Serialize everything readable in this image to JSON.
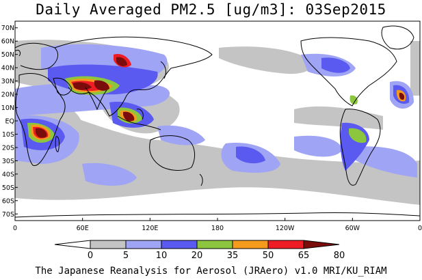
{
  "title": "Daily Averaged PM2.5 [ug/m3]: 03Sep2015",
  "credit": "The Japanese Reanalysis for Aerosol (JRAero) v1.0 MRI/KU_RIAM",
  "map": {
    "projection": "equirectangular",
    "lon_range": [
      0,
      360
    ],
    "lat_range": [
      -75,
      75
    ],
    "lat_ticks": [
      "70N",
      "60N",
      "50N",
      "40N",
      "30N",
      "20N",
      "10N",
      "EQ",
      "10S",
      "20S",
      "30S",
      "40S",
      "50S",
      "60S",
      "70S"
    ],
    "lat_tick_values": [
      70,
      60,
      50,
      40,
      30,
      20,
      10,
      0,
      -10,
      -20,
      -30,
      -40,
      -50,
      -60,
      -70
    ],
    "lon_ticks": [
      "0",
      "60E",
      "120E",
      "180",
      "120W",
      "60W",
      "0"
    ],
    "lon_tick_values": [
      0,
      60,
      120,
      180,
      240,
      300,
      360
    ]
  },
  "colorbar": {
    "levels": [
      "0",
      "5",
      "10",
      "20",
      "35",
      "50",
      "65",
      "80"
    ],
    "colors": [
      "#ffffff",
      "#c4c4c4",
      "#a0a4f4",
      "#5a5af0",
      "#8cc63f",
      "#f49a1c",
      "#ee1c24",
      "#7a0c0c"
    ]
  }
}
